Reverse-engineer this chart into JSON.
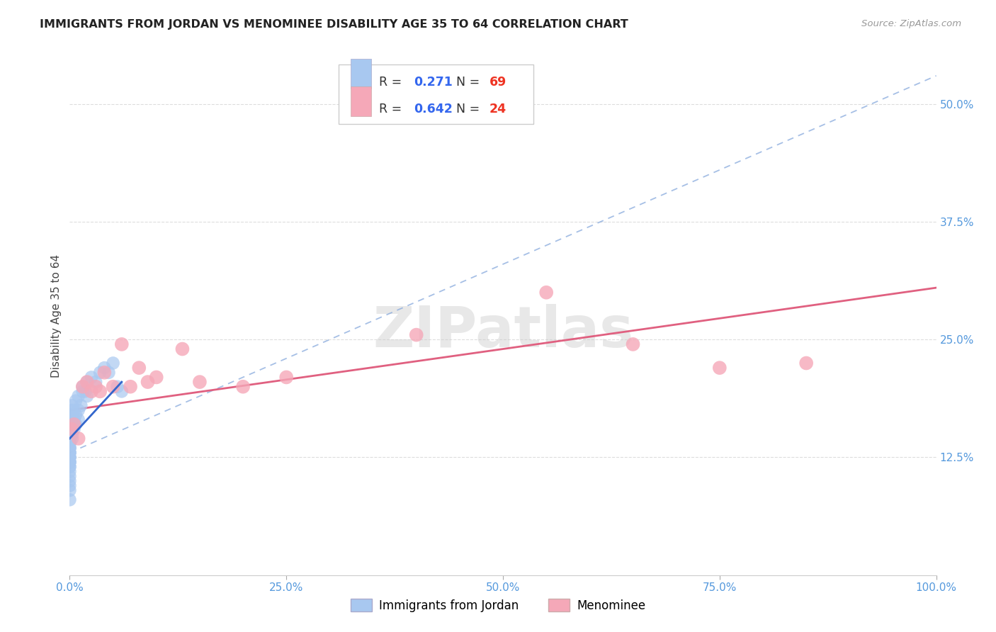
{
  "title": "IMMIGRANTS FROM JORDAN VS MENOMINEE DISABILITY AGE 35 TO 64 CORRELATION CHART",
  "source": "Source: ZipAtlas.com",
  "ylabel": "Disability Age 35 to 64",
  "xlim": [
    0,
    100
  ],
  "ylim": [
    0,
    55
  ],
  "xticks": [
    0,
    25,
    50,
    75,
    100
  ],
  "xtick_labels": [
    "0.0%",
    "25.0%",
    "50.0%",
    "75.0%",
    "100.0%"
  ],
  "ytick_positions": [
    0,
    12.5,
    25.0,
    37.5,
    50.0
  ],
  "ytick_labels": [
    "",
    "12.5%",
    "25.0%",
    "37.5%",
    "50.0%"
  ],
  "jordan_R": 0.271,
  "jordan_N": 69,
  "menominee_R": 0.642,
  "menominee_N": 24,
  "jordan_color": "#a8c8f0",
  "menominee_color": "#f5a8b8",
  "jordan_line_color": "#88aadd",
  "menominee_line_color": "#e06080",
  "background_color": "#ffffff",
  "grid_color": "#dddddd",
  "jordan_x": [
    0.0,
    0.0,
    0.0,
    0.0,
    0.0,
    0.0,
    0.0,
    0.0,
    0.0,
    0.0,
    0.0,
    0.0,
    0.0,
    0.0,
    0.0,
    0.0,
    0.0,
    0.0,
    0.0,
    0.0,
    0.0,
    0.0,
    0.0,
    0.0,
    0.0,
    0.0,
    0.0,
    0.0,
    0.0,
    0.0,
    0.0,
    0.0,
    0.0,
    0.0,
    0.0,
    0.0,
    0.0,
    0.0,
    0.0,
    0.0,
    0.3,
    0.3,
    0.3,
    0.3,
    0.3,
    0.5,
    0.5,
    0.5,
    0.5,
    0.7,
    0.7,
    0.7,
    1.0,
    1.0,
    1.0,
    1.3,
    1.5,
    1.5,
    1.8,
    2.0,
    2.0,
    2.5,
    3.0,
    3.5,
    4.0,
    4.5,
    5.0,
    5.5,
    6.0
  ],
  "jordan_y": [
    8.0,
    9.0,
    9.5,
    10.0,
    10.5,
    11.0,
    11.5,
    11.5,
    12.0,
    12.0,
    12.5,
    12.5,
    13.0,
    13.0,
    13.5,
    13.5,
    14.0,
    14.0,
    14.5,
    14.5,
    15.0,
    15.0,
    15.5,
    15.5,
    16.0,
    16.0,
    16.5,
    16.5,
    17.0,
    17.5,
    14.0,
    14.0,
    14.5,
    15.0,
    15.5,
    16.0,
    13.5,
    13.0,
    12.5,
    12.0,
    14.5,
    15.0,
    16.5,
    17.0,
    18.0,
    15.5,
    16.0,
    16.5,
    17.5,
    16.0,
    17.0,
    18.5,
    16.5,
    17.5,
    19.0,
    18.0,
    19.5,
    20.0,
    19.5,
    19.0,
    20.5,
    21.0,
    20.5,
    21.5,
    22.0,
    21.5,
    22.5,
    20.0,
    19.5
  ],
  "menominee_x": [
    0.2,
    0.5,
    1.0,
    1.5,
    2.0,
    2.5,
    3.0,
    3.5,
    4.0,
    5.0,
    6.0,
    7.0,
    8.0,
    9.0,
    10.0,
    13.0,
    15.0,
    20.0,
    25.0,
    40.0,
    55.0,
    65.0,
    75.0,
    85.0
  ],
  "menominee_y": [
    15.5,
    16.0,
    14.5,
    20.0,
    20.5,
    19.5,
    20.0,
    19.5,
    21.5,
    20.0,
    24.5,
    20.0,
    22.0,
    20.5,
    21.0,
    24.0,
    20.5,
    20.0,
    21.0,
    25.5,
    30.0,
    24.5,
    22.0,
    22.5
  ],
  "jordan_trendline_x": [
    0,
    100
  ],
  "jordan_trendline_y": [
    13.0,
    53.0
  ],
  "menominee_trendline_x": [
    0,
    100
  ],
  "menominee_trendline_y": [
    17.5,
    30.5
  ],
  "jordan_blue_line_x": [
    0,
    6.0
  ],
  "jordan_blue_line_y": [
    14.5,
    20.5
  ]
}
